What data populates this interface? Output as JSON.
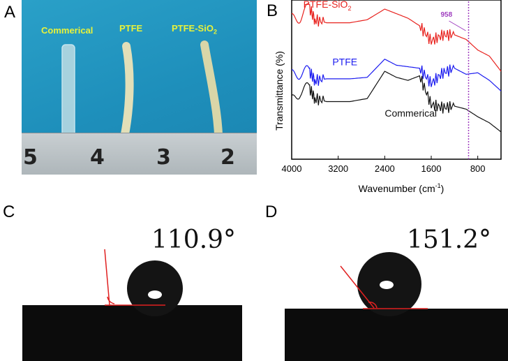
{
  "panels": {
    "a": "A",
    "b": "B",
    "c": "C",
    "d": "D"
  },
  "photo_a": {
    "labels": [
      "Commerical",
      "PTFE",
      "PTFE-SiO"
    ],
    "label_sub": "2",
    "ruler_numbers": [
      "5",
      "4",
      "3",
      "2"
    ]
  },
  "chart_data": {
    "type": "line",
    "xlabel": "Wavenumber (cm",
    "xlabel_sup": "-1",
    "xlabel_end": ")",
    "ylabel": "Transmittance (%)",
    "xlim": [
      4000,
      400
    ],
    "x_ticks": [
      "4000",
      "3200",
      "2400",
      "1600",
      "800"
    ],
    "x_tick_values": [
      4000,
      3200,
      2400,
      1600,
      800
    ],
    "annotation": {
      "text": "958",
      "x": 958,
      "color": "#a040c0"
    },
    "series": [
      {
        "name": "PTFE-SiO",
        "name_sub": "2",
        "color": "#e8231f",
        "x": [
          4000,
          3850,
          3700,
          3600,
          3400,
          3000,
          2700,
          2400,
          2200,
          2000,
          1800,
          1600,
          1400,
          1200,
          1000,
          800,
          600,
          400
        ],
        "y": [
          92,
          94,
          100,
          92,
          90,
          90,
          92,
          99,
          96,
          93,
          88,
          78,
          82,
          82,
          79,
          72,
          68,
          58
        ]
      },
      {
        "name": "PTFE",
        "name_sub": "",
        "color": "#1c1cf0",
        "x": [
          4000,
          3850,
          3700,
          3600,
          3400,
          3000,
          2700,
          2400,
          2200,
          2000,
          1800,
          1600,
          1400,
          1200,
          1000,
          800,
          600,
          400
        ],
        "y": [
          55,
          57,
          58,
          52,
          53,
          53,
          54,
          66,
          62,
          61,
          60,
          50,
          57,
          60,
          56,
          57,
          52,
          45
        ]
      },
      {
        "name": "Commerical",
        "name_sub": "",
        "color": "#111111",
        "x": [
          4000,
          3850,
          3700,
          3600,
          3400,
          3000,
          2700,
          2400,
          2200,
          2000,
          1800,
          1600,
          1400,
          1200,
          1000,
          800,
          600,
          400
        ],
        "y": [
          38,
          45,
          47,
          40,
          38,
          38,
          40,
          58,
          54,
          52,
          55,
          36,
          34,
          35,
          33,
          28,
          24,
          18
        ]
      }
    ]
  },
  "photo_c": {
    "angle": "110.9°"
  },
  "photo_d": {
    "angle": "151.2°"
  }
}
